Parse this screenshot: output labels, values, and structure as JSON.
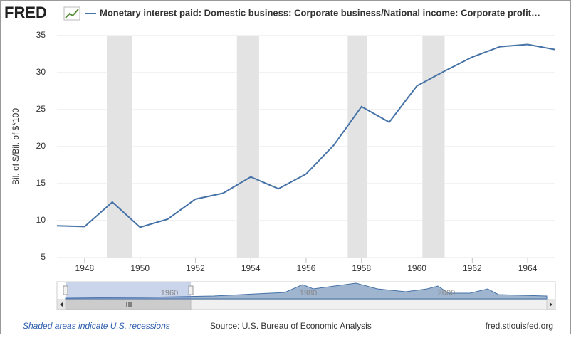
{
  "brand": "FRED",
  "chart_data": {
    "type": "line",
    "title": "Monetary interest paid: Domestic business: Corporate business/National income: Corporate profit…",
    "y_label": "Bil. of $/Bil. of $*100",
    "x": [
      1947,
      1948,
      1949,
      1950,
      1951,
      1952,
      1953,
      1954,
      1955,
      1956,
      1957,
      1958,
      1959,
      1960,
      1961,
      1962,
      1963,
      1964,
      1965
    ],
    "series": [
      {
        "name": "Monetary interest paid: Domestic business: Corporate business/National income: Corporate profit…",
        "color": "#4572a7",
        "values": [
          9.3,
          9.2,
          12.5,
          9.1,
          10.2,
          12.9,
          13.7,
          15.9,
          14.3,
          16.3,
          20.2,
          25.4,
          23.3,
          28.2,
          30.2,
          32.1,
          33.5,
          33.8,
          33.1
        ]
      }
    ],
    "recessions": [
      [
        1948.8,
        1949.7
      ],
      [
        1953.5,
        1954.3
      ],
      [
        1957.5,
        1958.2
      ],
      [
        1960.2,
        1961.0
      ]
    ],
    "xlim": [
      1947,
      1965
    ],
    "xticks": [
      1948,
      1950,
      1952,
      1954,
      1956,
      1958,
      1960,
      1962,
      1964
    ],
    "ylim": [
      5,
      35
    ],
    "yticks": [
      5,
      10,
      15,
      20,
      25,
      30,
      35
    ],
    "grid": true
  },
  "navigator": {
    "labels": [
      "1960",
      "1980",
      "2000"
    ]
  },
  "footer": {
    "note": "Shaded areas indicate U.S. recessions",
    "source": "Source: U.S. Bureau of Economic Analysis",
    "site": "fred.stlouisfed.org"
  }
}
